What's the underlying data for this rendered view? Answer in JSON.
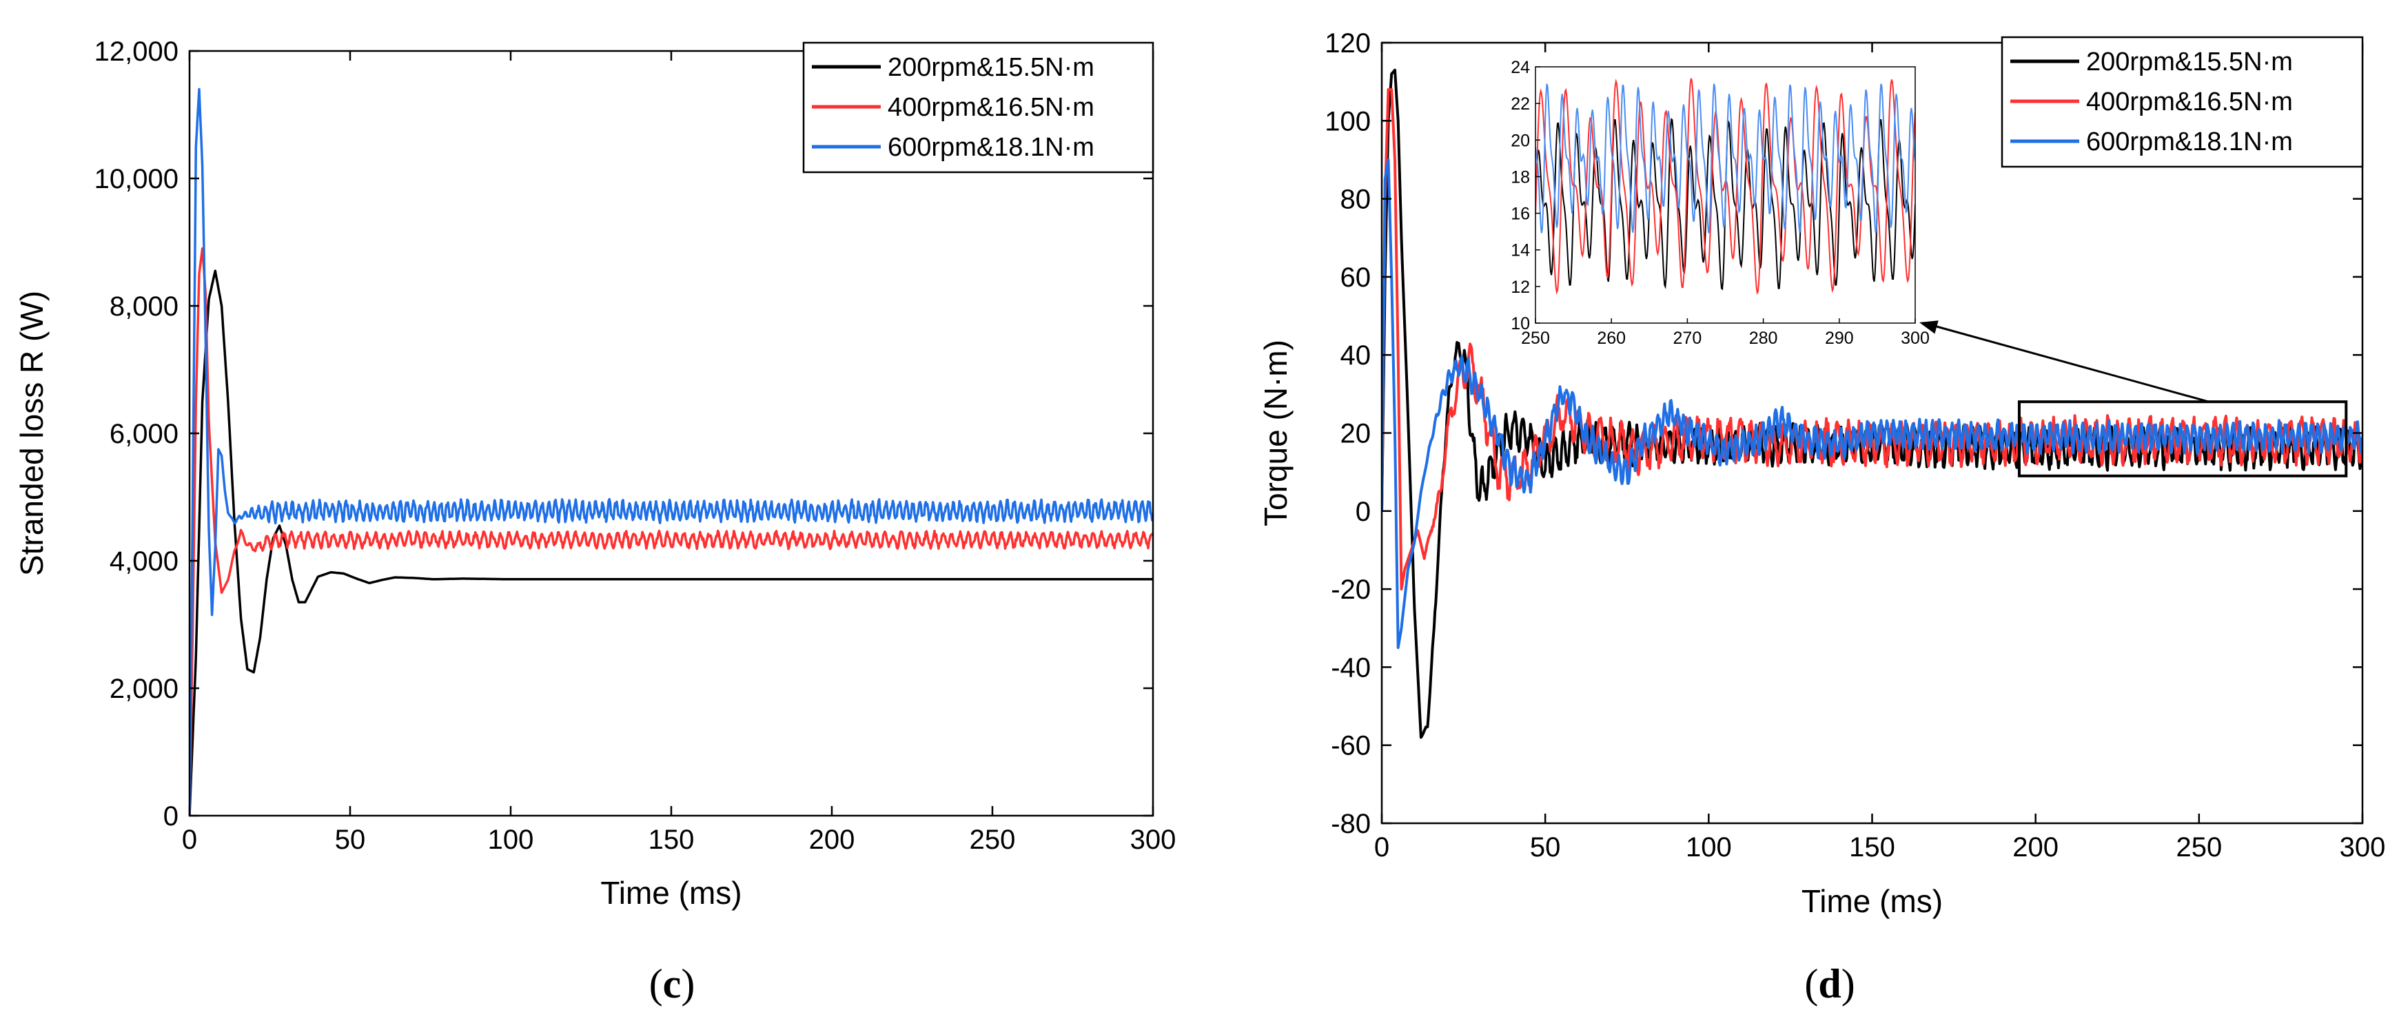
{
  "chart_data": [
    {
      "id": "c",
      "type": "line",
      "panel_label_open": "(",
      "panel_label_letter": "c",
      "panel_label_close": ")",
      "xlabel": "Time (ms)",
      "ylabel": "Stranded loss R (W)",
      "xlim": [
        0,
        300
      ],
      "ylim": [
        0,
        12000
      ],
      "xticks": [
        0,
        50,
        100,
        150,
        200,
        250,
        300
      ],
      "xtick_labels": [
        "0",
        "50",
        "100",
        "150",
        "200",
        "250",
        "300"
      ],
      "yticks": [
        0,
        2000,
        4000,
        6000,
        8000,
        10000,
        12000
      ],
      "ytick_labels": [
        "0",
        "2,000",
        "4,000",
        "6,000",
        "8,000",
        "10,000",
        "12,000"
      ],
      "legend_position": "top-right",
      "series": [
        {
          "name": "200rpm&15.5N·m",
          "color": "#000000",
          "points": [
            [
              0,
              0
            ],
            [
              2,
              2500
            ],
            [
              4,
              6500
            ],
            [
              6,
              8100
            ],
            [
              8,
              8550
            ],
            [
              10,
              8000
            ],
            [
              12,
              6500
            ],
            [
              14,
              4600
            ],
            [
              16,
              3100
            ],
            [
              18,
              2300
            ],
            [
              20,
              2250
            ],
            [
              22,
              2800
            ],
            [
              24,
              3700
            ],
            [
              26,
              4350
            ],
            [
              28,
              4550
            ],
            [
              30,
              4250
            ],
            [
              32,
              3700
            ],
            [
              34,
              3350
            ],
            [
              36,
              3350
            ],
            [
              38,
              3550
            ],
            [
              40,
              3750
            ],
            [
              44,
              3820
            ],
            [
              48,
              3800
            ],
            [
              52,
              3720
            ],
            [
              56,
              3650
            ],
            [
              60,
              3700
            ],
            [
              64,
              3740
            ],
            [
              70,
              3730
            ],
            [
              76,
              3710
            ],
            [
              85,
              3720
            ],
            [
              100,
              3710
            ],
            [
              150,
              3710
            ],
            [
              200,
              3710
            ],
            [
              250,
              3710
            ],
            [
              300,
              3710
            ]
          ],
          "steady_amplitude": 0
        },
        {
          "name": "400rpm&16.5N·m",
          "color": "#ff3030",
          "points": [
            [
              0,
              0
            ],
            [
              1,
              3000
            ],
            [
              2,
              6500
            ],
            [
              3,
              8500
            ],
            [
              4,
              8900
            ],
            [
              5,
              8200
            ],
            [
              6,
              6200
            ],
            [
              8,
              4300
            ],
            [
              10,
              3500
            ],
            [
              12,
              3700
            ],
            [
              14,
              4150
            ],
            [
              16,
              4450
            ],
            [
              18,
              4250
            ],
            [
              20,
              4200
            ],
            [
              25,
              4300
            ],
            [
              30,
              4350
            ],
            [
              40,
              4320
            ],
            [
              60,
              4330
            ],
            [
              100,
              4330
            ],
            [
              150,
              4330
            ],
            [
              200,
              4330
            ],
            [
              250,
              4330
            ],
            [
              300,
              4330
            ]
          ],
          "steady_amplitude": 100
        },
        {
          "name": "600rpm&18.1N·m",
          "color": "#1f6fe6",
          "points": [
            [
              0,
              0
            ],
            [
              1,
              5000
            ],
            [
              2,
              10500
            ],
            [
              3,
              11400
            ],
            [
              4,
              10200
            ],
            [
              5,
              7500
            ],
            [
              6,
              4500
            ],
            [
              7,
              3150
            ],
            [
              8,
              4200
            ],
            [
              9,
              5750
            ],
            [
              10,
              5650
            ],
            [
              11,
              5100
            ],
            [
              12,
              4750
            ],
            [
              14,
              4600
            ],
            [
              16,
              4700
            ],
            [
              20,
              4750
            ],
            [
              30,
              4780
            ],
            [
              60,
              4780
            ],
            [
              100,
              4780
            ],
            [
              150,
              4780
            ],
            [
              200,
              4780
            ],
            [
              250,
              4780
            ],
            [
              300,
              4780
            ]
          ],
          "steady_amplitude": 130
        }
      ]
    },
    {
      "id": "d",
      "type": "line",
      "panel_label_open": "(",
      "panel_label_letter": "d",
      "panel_label_close": ")",
      "xlabel": "Time (ms)",
      "ylabel": "Torque (N·m)",
      "xlim": [
        0,
        300
      ],
      "ylim": [
        -80,
        120
      ],
      "xticks": [
        0,
        50,
        100,
        150,
        200,
        250,
        300
      ],
      "xtick_labels": [
        "0",
        "50",
        "100",
        "150",
        "200",
        "250",
        "300"
      ],
      "yticks": [
        -80,
        -60,
        -40,
        -20,
        0,
        20,
        40,
        60,
        80,
        100,
        120
      ],
      "ytick_labels": [
        "-80",
        "-60",
        "-40",
        "-20",
        "0",
        "20",
        "40",
        "60",
        "80",
        "100",
        "120"
      ],
      "legend_position": "top-right",
      "zoom_box": {
        "x": [
          195,
          295
        ],
        "y": [
          9,
          28
        ]
      },
      "series": [
        {
          "name": "200rpm&15.5N·m",
          "color": "#000000",
          "points": [
            [
              0,
              0
            ],
            [
              1,
              60
            ],
            [
              2,
              100
            ],
            [
              3,
              112
            ],
            [
              4,
              113
            ],
            [
              5,
              100
            ],
            [
              6,
              70
            ],
            [
              8,
              25
            ],
            [
              10,
              -25
            ],
            [
              12,
              -58
            ],
            [
              14,
              -55
            ],
            [
              16,
              -30
            ],
            [
              18,
              0
            ],
            [
              20,
              25
            ],
            [
              22,
              38
            ],
            [
              24,
              42
            ],
            [
              26,
              35
            ],
            [
              28,
              15
            ],
            [
              30,
              5
            ],
            [
              32,
              8
            ],
            [
              35,
              15
            ],
            [
              40,
              22
            ],
            [
              45,
              18
            ],
            [
              50,
              12
            ],
            [
              60,
              18
            ],
            [
              80,
              17
            ],
            [
              100,
              17
            ],
            [
              150,
              17
            ],
            [
              200,
              16
            ],
            [
              250,
              16
            ],
            [
              300,
              16
            ]
          ],
          "steady_amplitude": 4
        },
        {
          "name": "400rpm&16.5N·m",
          "color": "#ff3030",
          "points": [
            [
              0,
              0
            ],
            [
              1,
              80
            ],
            [
              2,
              108
            ],
            [
              3,
              108
            ],
            [
              4,
              90
            ],
            [
              5,
              40
            ],
            [
              6,
              -20
            ],
            [
              7,
              -15
            ],
            [
              9,
              -10
            ],
            [
              11,
              -5
            ],
            [
              13,
              -12
            ],
            [
              15,
              -5
            ],
            [
              18,
              5
            ],
            [
              20,
              20
            ],
            [
              24,
              35
            ],
            [
              27,
              38
            ],
            [
              30,
              30
            ],
            [
              33,
              20
            ],
            [
              36,
              10
            ],
            [
              40,
              8
            ],
            [
              45,
              12
            ],
            [
              50,
              18
            ],
            [
              55,
              25
            ],
            [
              60,
              22
            ],
            [
              70,
              18
            ],
            [
              80,
              15
            ],
            [
              90,
              18
            ],
            [
              100,
              19
            ],
            [
              120,
              18
            ],
            [
              150,
              17
            ],
            [
              200,
              18
            ],
            [
              250,
              18
            ],
            [
              300,
              18
            ]
          ],
          "steady_amplitude": 4.5
        },
        {
          "name": "600rpm&18.1N·m",
          "color": "#1f6fe6",
          "points": [
            [
              0,
              0
            ],
            [
              1,
              85
            ],
            [
              2,
              90
            ],
            [
              3,
              60
            ],
            [
              4,
              20
            ],
            [
              5,
              -35
            ],
            [
              6,
              -30
            ],
            [
              8,
              -15
            ],
            [
              10,
              -8
            ],
            [
              12,
              5
            ],
            [
              15,
              18
            ],
            [
              18,
              28
            ],
            [
              20,
              33
            ],
            [
              23,
              37
            ],
            [
              26,
              36
            ],
            [
              30,
              30
            ],
            [
              35,
              20
            ],
            [
              40,
              10
            ],
            [
              45,
              8
            ],
            [
              50,
              18
            ],
            [
              55,
              30
            ],
            [
              58,
              28
            ],
            [
              62,
              20
            ],
            [
              70,
              12
            ],
            [
              75,
              10
            ],
            [
              80,
              18
            ],
            [
              88,
              25
            ],
            [
              95,
              20
            ],
            [
              105,
              15
            ],
            [
              115,
              18
            ],
            [
              122,
              23
            ],
            [
              130,
              18
            ],
            [
              140,
              17
            ],
            [
              150,
              20
            ],
            [
              200,
              19
            ],
            [
              250,
              19
            ],
            [
              300,
              19
            ]
          ],
          "steady_amplitude": 3
        }
      ],
      "inset": {
        "type": "line",
        "xlim": [
          250,
          300
        ],
        "ylim": [
          10,
          24
        ],
        "xticks": [
          250,
          260,
          270,
          280,
          290,
          300
        ],
        "xtick_labels": [
          "250",
          "260",
          "270",
          "280",
          "290",
          "300"
        ],
        "yticks": [
          10,
          12,
          14,
          16,
          18,
          20,
          22,
          24
        ],
        "ytick_labels": [
          "10",
          "12",
          "14",
          "16",
          "18",
          "20",
          "22",
          "24"
        ],
        "series": [
          {
            "name": "200rpm&15.5N·m",
            "color": "#000000",
            "mean": 16.5,
            "amplitude": 4.0,
            "period_ms": 2.5
          },
          {
            "name": "400rpm&16.5N·m",
            "color": "#ff3030",
            "mean": 17.5,
            "amplitude": 5.0,
            "period_ms": 3.3
          },
          {
            "name": "600rpm&18.1N·m",
            "color": "#4a8cf0",
            "mean": 19.0,
            "amplitude": 3.5,
            "period_ms": 2.0
          }
        ]
      }
    }
  ]
}
